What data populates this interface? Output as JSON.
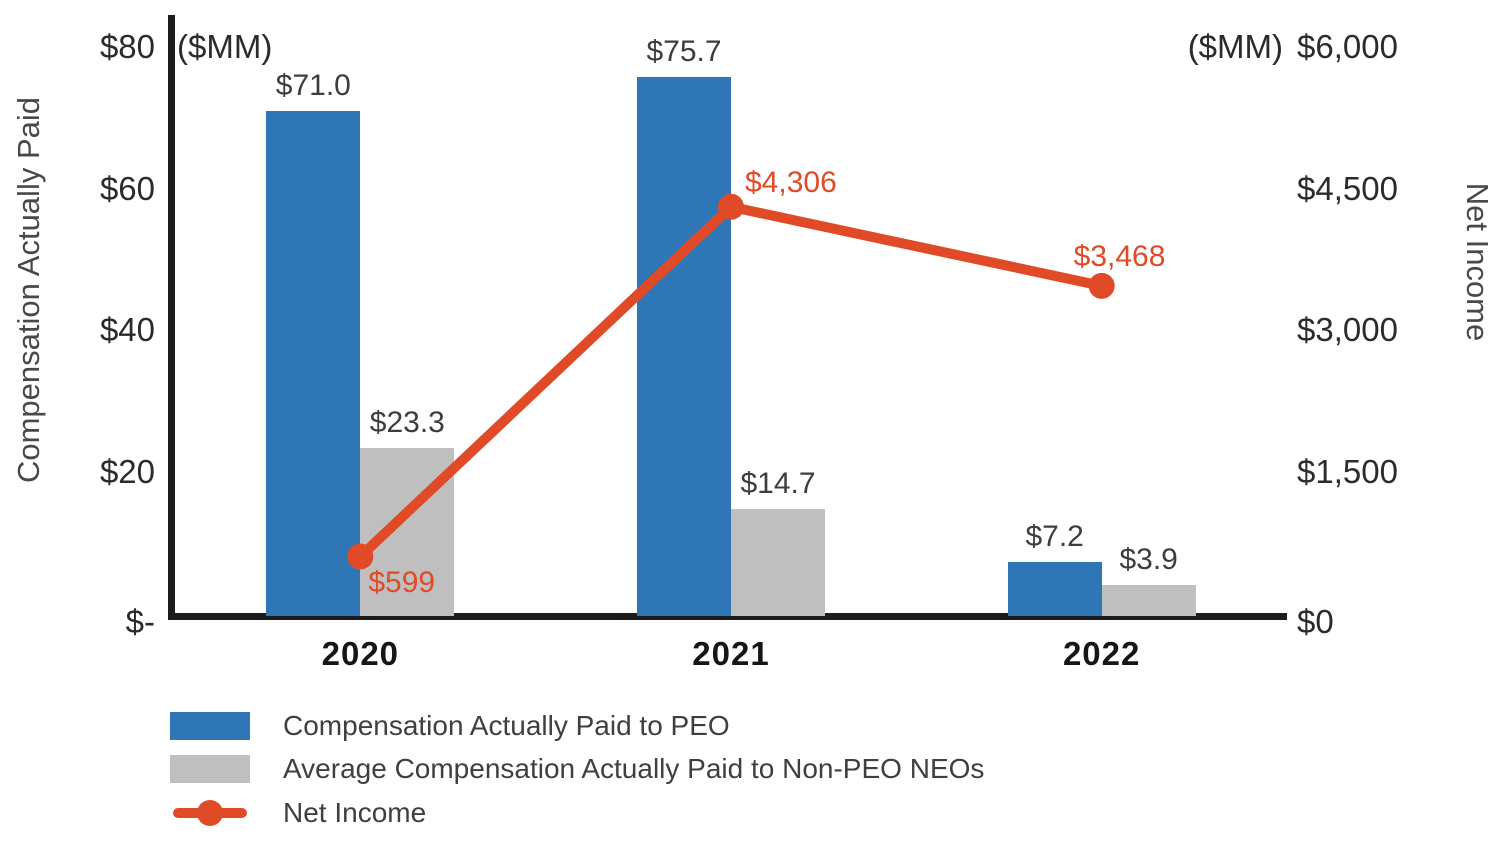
{
  "chart_data": {
    "type": "combo-bar-line",
    "categories": [
      "2020",
      "2021",
      "2022"
    ],
    "series": [
      {
        "name": "Compensation Actually Paid to PEO",
        "type": "bar",
        "axis": "left",
        "color": "#2e76b6",
        "values": [
          71.0,
          75.7,
          7.2
        ],
        "labels": [
          "$71.0",
          "$75.7",
          "$7.2"
        ]
      },
      {
        "name": "Average Compensation Actually Paid to Non-PEO NEOs",
        "type": "bar",
        "axis": "left",
        "color": "#bfbfbf",
        "values": [
          23.3,
          14.7,
          3.9
        ],
        "labels": [
          "$23.3",
          "$14.7",
          "$3.9"
        ]
      },
      {
        "name": "Net Income",
        "type": "line",
        "axis": "right",
        "color": "#e04a26",
        "values": [
          599,
          4306,
          3468
        ],
        "labels": [
          "$599",
          "$4,306",
          "$3,468"
        ]
      }
    ],
    "left_axis": {
      "title": "Compensation Actually Paid",
      "unit": "($MM)",
      "ticks": [
        "$80",
        "$60",
        "$40",
        "$20",
        "$-"
      ],
      "tick_values": [
        80,
        60,
        40,
        20,
        0
      ],
      "max": 80
    },
    "right_axis": {
      "title": "Net Income",
      "unit": "($MM)",
      "ticks": [
        "$6,000",
        "$4,500",
        "$3,000",
        "$1,500",
        "$0"
      ],
      "tick_values": [
        6000,
        4500,
        3000,
        1500,
        0
      ],
      "max": 6000
    },
    "legend": [
      {
        "marker": "bar",
        "color": "#2e76b6",
        "label": "Compensation Actually Paid to PEO"
      },
      {
        "marker": "bar",
        "color": "#bfbfbf",
        "label": "Average Compensation Actually Paid to Non-PEO NEOs"
      },
      {
        "marker": "line",
        "color": "#e04a26",
        "label": "Net Income"
      }
    ],
    "grid": false,
    "legend_position": "bottom-left"
  }
}
